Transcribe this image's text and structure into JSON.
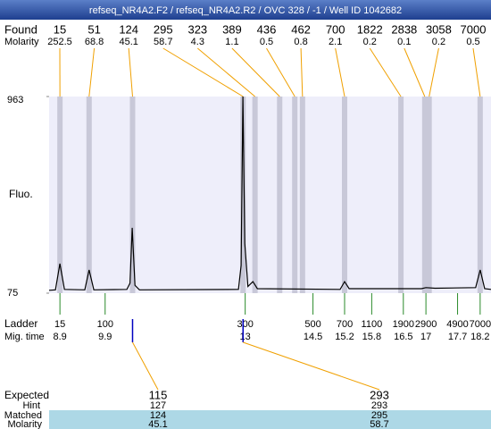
{
  "title": "refseq_NR4A2.F2 / refseq_NR4A2.R2 / OVC 328 / -1 / Well ID 1042682",
  "found": {
    "label": "Found",
    "sizes": [
      15,
      51,
      124,
      295,
      323,
      389,
      436,
      462,
      700,
      1822,
      2838,
      3058,
      7000
    ]
  },
  "molarity": {
    "label": "Molarity",
    "values": [
      252.5,
      68.8,
      45.1,
      58.7,
      4.3,
      1.1,
      0.5,
      0.8,
      2.1,
      0.2,
      0.1,
      0.2,
      0.5
    ]
  },
  "chart_data": {
    "type": "line",
    "ylabel": "Fluo.",
    "ylim": [
      75,
      963
    ],
    "yticks": [
      75,
      963
    ],
    "xlim": [
      8.66,
      18.44
    ],
    "color": "#000000",
    "x": [
      8.66,
      8.8,
      8.9,
      9.0,
      9.45,
      9.545,
      9.65,
      10.38,
      10.45,
      10.5,
      10.56,
      10.66,
      12.85,
      12.91,
      12.95,
      12.99,
      13.06,
      13.17,
      13.27,
      15.1,
      15.2,
      15.3,
      16.9,
      17.0,
      17.2,
      18.1,
      18.2,
      18.3,
      18.44
    ],
    "values": [
      88,
      90,
      208,
      92,
      90,
      180,
      90,
      92,
      120,
      370,
      110,
      90,
      92,
      200,
      963,
      300,
      105,
      127,
      95,
      92,
      127,
      95,
      95,
      100,
      97,
      100,
      180,
      95,
      92
    ]
  },
  "ladder": {
    "label": "Ladder",
    "sizes": [
      15,
      100,
      300,
      500,
      700,
      1100,
      1900,
      2900,
      4900,
      7000
    ]
  },
  "mig_time": {
    "label": "Mig. time",
    "values": [
      8.9,
      9.9,
      13,
      14.5,
      15.2,
      15.8,
      16.5,
      17,
      17.7,
      18.2
    ]
  },
  "expected": {
    "label": "Expected",
    "sizes": [
      115,
      293
    ]
  },
  "hint": {
    "label": "Hint",
    "values": [
      127,
      293
    ]
  },
  "matched": {
    "label": "Matched",
    "sizes": [
      124,
      295
    ]
  },
  "matched_molarity": {
    "label": "Molarity",
    "values": [
      45.1,
      58.7
    ]
  }
}
